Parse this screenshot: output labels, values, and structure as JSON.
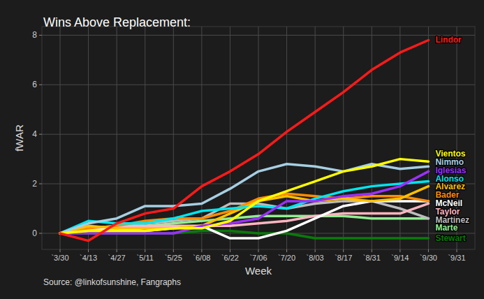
{
  "chart_data": {
    "type": "line",
    "title": "Wins Above Replacement:",
    "x_label": "Week",
    "y_label": "fWAR",
    "caption": "Source: @linkofsunshine, Fangraphs",
    "categories": [
      "`3/30",
      "`4/13",
      "`4/27",
      "`5/11",
      "`5/25",
      "`6/08",
      "`6/22",
      "`7/06",
      "`7/20",
      "`8/03",
      "`8/17",
      "`8/31",
      "`9/14",
      "`9/30",
      "`9/31"
    ],
    "ylim": [
      -0.65,
      8.35
    ],
    "yticks": [
      0,
      2,
      4,
      6,
      8
    ],
    "grid": true,
    "series": [
      {
        "name": "Lindor",
        "color": "#ff1a1a",
        "values": [
          0,
          -0.3,
          0.4,
          0.8,
          1.0,
          1.9,
          2.5,
          3.2,
          4.1,
          4.9,
          5.7,
          6.6,
          7.3,
          7.8,
          null
        ]
      },
      {
        "name": "Vientos",
        "color": "#ffff00",
        "values": [
          0,
          0.1,
          0.1,
          0.1,
          0.2,
          0.2,
          0.5,
          1.3,
          1.7,
          2.1,
          2.5,
          2.7,
          3.0,
          2.9,
          null
        ]
      },
      {
        "name": "Nimmo",
        "color": "#a6cfe2",
        "values": [
          0,
          0.4,
          0.6,
          1.1,
          1.1,
          1.2,
          1.8,
          2.5,
          2.8,
          2.7,
          2.5,
          2.8,
          2.6,
          2.7,
          null
        ]
      },
      {
        "name": "Iglesias",
        "color": "#9b30ff",
        "values": [
          0,
          0,
          0,
          0,
          0,
          0.3,
          0.4,
          0.6,
          1.3,
          1.3,
          1.5,
          1.6,
          1.9,
          2.5,
          null
        ]
      },
      {
        "name": "Alonso",
        "color": "#00e5ee",
        "values": [
          0,
          0.5,
          0.4,
          0.4,
          0.6,
          0.9,
          1.0,
          1.1,
          1.0,
          1.4,
          1.7,
          1.9,
          2.0,
          2.1,
          null
        ]
      },
      {
        "name": "Alvarez",
        "color": "#ffc000",
        "values": [
          0,
          0.3,
          0.2,
          0.2,
          0.2,
          0.3,
          0.8,
          1.3,
          1.5,
          1.3,
          1.4,
          1.3,
          1.4,
          1.9,
          null
        ]
      },
      {
        "name": "Bader",
        "color": "#ff8c00",
        "values": [
          0,
          0.2,
          0.3,
          0.5,
          0.6,
          0.6,
          0.9,
          1.4,
          1.6,
          1.5,
          1.4,
          1.5,
          1.5,
          1.3,
          null
        ]
      },
      {
        "name": "McNeil",
        "color": "#ffffff",
        "values": [
          0,
          0.2,
          0.2,
          0.1,
          0.2,
          0.3,
          -0.2,
          -0.2,
          0.1,
          0.6,
          1.1,
          1.3,
          1.3,
          1.3,
          null
        ]
      },
      {
        "name": "Taylor",
        "color": "#ffb6c1",
        "values": [
          0,
          0.1,
          0.3,
          0.3,
          0.3,
          0.3,
          0.3,
          0.4,
          0.5,
          0.7,
          0.8,
          0.8,
          0.8,
          1.2,
          null
        ]
      },
      {
        "name": "Martinez",
        "color": "#bdbdbd",
        "values": [
          0,
          0.1,
          0.2,
          0.4,
          0.5,
          0.6,
          1.2,
          1.2,
          1.0,
          1.2,
          1.3,
          1.3,
          1.0,
          0.6,
          null
        ]
      },
      {
        "name": "Marte",
        "color": "#90ee90",
        "values": [
          0,
          0.2,
          0.3,
          0.3,
          0.4,
          0.5,
          0.6,
          0.7,
          0.7,
          0.7,
          0.7,
          0.6,
          0.6,
          0.6,
          null
        ]
      },
      {
        "name": "Stewart",
        "color": "#0a7a0a",
        "values": [
          0,
          0,
          0,
          0,
          0,
          0.1,
          0.1,
          0,
          0,
          -0.2,
          -0.2,
          -0.2,
          -0.2,
          -0.2,
          null
        ]
      }
    ]
  }
}
